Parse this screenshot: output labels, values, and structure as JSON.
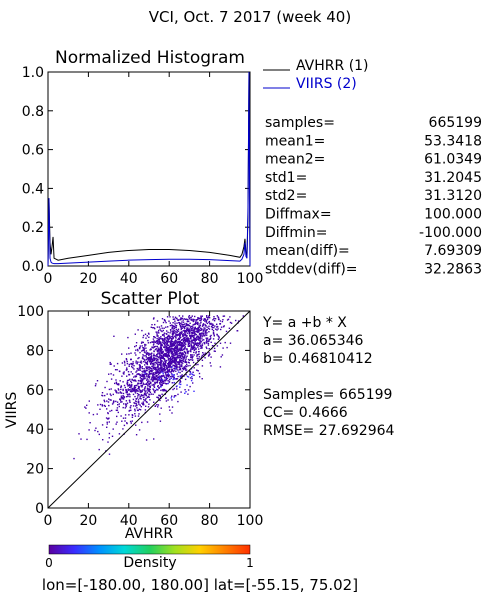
{
  "header": {
    "title": "VCI,  Oct. 7 2017 (week 40)"
  },
  "chart_data": [
    {
      "type": "line",
      "title": "Normalized Histogram",
      "xlim": [
        0,
        100
      ],
      "ylim": [
        0,
        1.0
      ],
      "x_ticks": [
        "0",
        "20",
        "40",
        "60",
        "80",
        "100"
      ],
      "y_ticks": [
        "0.0",
        "0.2",
        "0.4",
        "0.6",
        "0.8",
        "1.0"
      ],
      "legend": {
        "placement": "right",
        "entries": [
          {
            "label": "AVHRR (1)",
            "color": "#000000"
          },
          {
            "label": "VIIRS (2)",
            "color": "#0000cc"
          }
        ]
      },
      "series": [
        {
          "name": "AVHRR (1)",
          "color": "#000000",
          "x": [
            0,
            0.5,
            1,
            1.5,
            2,
            2.5,
            3,
            4,
            5,
            10,
            20,
            30,
            40,
            50,
            60,
            70,
            80,
            90,
            95,
            96,
            97,
            97.5,
            98,
            98.5,
            99,
            99.5,
            100
          ],
          "y": [
            0.0,
            0.33,
            0.12,
            0.06,
            0.1,
            0.15,
            0.04,
            0.035,
            0.03,
            0.04,
            0.055,
            0.07,
            0.08,
            0.085,
            0.085,
            0.08,
            0.07,
            0.055,
            0.045,
            0.06,
            0.1,
            0.14,
            0.07,
            0.05,
            0.25,
            1.0,
            0.0
          ]
        },
        {
          "name": "VIIRS (2)",
          "color": "#0000cc",
          "x": [
            0,
            0.5,
            1,
            1.5,
            2,
            3,
            5,
            10,
            20,
            30,
            40,
            50,
            60,
            70,
            80,
            90,
            95,
            96,
            97,
            97.5,
            98,
            98.5,
            99,
            99.5,
            100
          ],
          "y": [
            0.0,
            0.35,
            0.04,
            0.02,
            0.015,
            0.012,
            0.012,
            0.015,
            0.02,
            0.025,
            0.03,
            0.033,
            0.035,
            0.035,
            0.033,
            0.028,
            0.025,
            0.035,
            0.06,
            0.12,
            0.05,
            0.04,
            0.3,
            1.0,
            0.0
          ]
        }
      ]
    },
    {
      "type": "scatter",
      "title": "Scatter Plot",
      "xlabel": "AVHRR",
      "ylabel": "VIIRS",
      "xlim": [
        0,
        100
      ],
      "ylim": [
        0,
        100
      ],
      "x_ticks": [
        "0",
        "20",
        "40",
        "60",
        "80",
        "100"
      ],
      "y_ticks": [
        "0",
        "20",
        "40",
        "60",
        "80",
        "100"
      ],
      "fit": {
        "a": 36.065346,
        "b": 0.46810412
      },
      "point_color": "#4400aa",
      "points_approx": [
        [
          15,
          38
        ],
        [
          20,
          40
        ],
        [
          24,
          48
        ],
        [
          28,
          52
        ],
        [
          30,
          44
        ],
        [
          32,
          58
        ],
        [
          34,
          50
        ],
        [
          36,
          62
        ],
        [
          38,
          46
        ],
        [
          40,
          55
        ],
        [
          42,
          60
        ],
        [
          44,
          50
        ],
        [
          46,
          66
        ],
        [
          48,
          58
        ],
        [
          50,
          62
        ],
        [
          52,
          54
        ],
        [
          54,
          70
        ],
        [
          56,
          64
        ],
        [
          58,
          60
        ],
        [
          60,
          72
        ],
        [
          62,
          66
        ],
        [
          64,
          58
        ],
        [
          66,
          74
        ],
        [
          68,
          68
        ],
        [
          70,
          62
        ],
        [
          72,
          78
        ],
        [
          74,
          70
        ],
        [
          76,
          66
        ],
        [
          78,
          82
        ],
        [
          80,
          74
        ],
        [
          82,
          80
        ],
        [
          84,
          86
        ],
        [
          86,
          78
        ],
        [
          88,
          90
        ],
        [
          90,
          84
        ],
        [
          45,
          40
        ],
        [
          35,
          38
        ],
        [
          60,
          50
        ],
        [
          55,
          48
        ],
        [
          70,
          80
        ],
        [
          65,
          85
        ],
        [
          50,
          75
        ],
        [
          40,
          68
        ],
        [
          25,
          30
        ],
        [
          30,
          36
        ],
        [
          75,
          88
        ],
        [
          85,
          72
        ],
        [
          48,
          52
        ],
        [
          58,
          56
        ],
        [
          68,
          76
        ]
      ]
    }
  ],
  "stats": [
    {
      "label": "samples=",
      "value": "665199"
    },
    {
      "label": "mean1=",
      "value": "53.3418"
    },
    {
      "label": "mean2=",
      "value": "61.0349"
    },
    {
      "label": "std1=",
      "value": "31.2045"
    },
    {
      "label": "std2=",
      "value": "31.3120"
    },
    {
      "label": "Diffmax=",
      "value": "100.000"
    },
    {
      "label": "Diffmin=",
      "value": "-100.000"
    },
    {
      "label": "mean(diff)=",
      "value": "7.69309"
    },
    {
      "label": "stddev(diff)=",
      "value": "32.2863"
    }
  ],
  "fit_text": {
    "equation": "Y= a +b * X",
    "a": "a= 36.065346",
    "b": "b= 0.46810412",
    "samples": "Samples= 665199",
    "cc": "CC=  0.4666",
    "rmse": "RMSE= 27.692964"
  },
  "colorbar": {
    "label": "Density",
    "min_label": "0",
    "max_label": "1",
    "colors": [
      "#5a00a0",
      "#3a2cff",
      "#0090ff",
      "#00d8d8",
      "#20d060",
      "#a0e020",
      "#ffd000",
      "#ff8000",
      "#ff3000"
    ]
  },
  "footer": {
    "text": "lon=[-180.00, 180.00] lat=[-55.15, 75.02]"
  }
}
